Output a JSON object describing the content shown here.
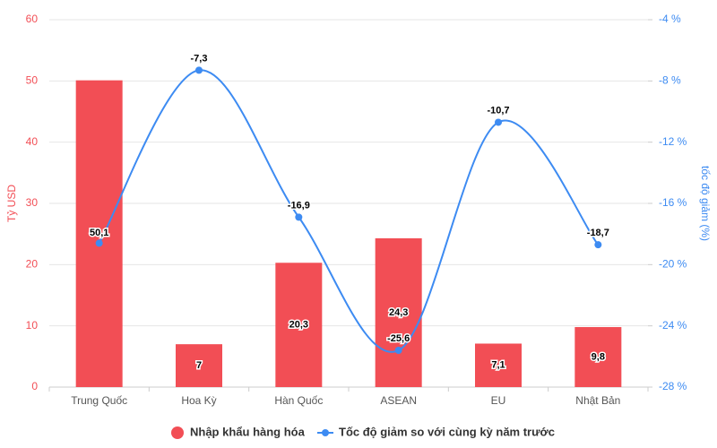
{
  "chart_data": {
    "type": "bar+line",
    "categories": [
      "Trung Quốc",
      "Hoa Kỳ",
      "Hàn Quốc",
      "ASEAN",
      "EU",
      "Nhật Bản"
    ],
    "series": [
      {
        "name": "Nhập khẩu hàng hóa",
        "type": "bar",
        "color": "#f24e55",
        "values": [
          50.1,
          7,
          20.3,
          24.3,
          7.1,
          9.8
        ],
        "value_labels": [
          "50,1",
          "7",
          "20,3",
          "24,3",
          "7,1",
          "9,8"
        ]
      },
      {
        "name": "Tốc độ giảm so với cùng kỳ năm trước",
        "type": "line",
        "axis": "y2",
        "color": "#3d8bf2",
        "values": [
          -18.6,
          -7.3,
          -16.9,
          -25.6,
          -10.7,
          -18.7
        ],
        "value_labels": [
          null,
          "-7,3",
          "-16,9",
          "-25,6",
          "-10,7",
          "-18,7"
        ]
      }
    ],
    "ylabel": "Tỷ USD",
    "y2label": "tốc độ giảm (%)",
    "ylim": [
      0,
      60
    ],
    "yticks": [
      0,
      10,
      20,
      30,
      40,
      50,
      60
    ],
    "y2lim": [
      -28,
      -4
    ],
    "y2ticks": [
      {
        "value": -28,
        "label": "-28 %"
      },
      {
        "value": -24,
        "label": "-24 %"
      },
      {
        "value": -20,
        "label": "-20 %"
      },
      {
        "value": -16,
        "label": "-16 %"
      },
      {
        "value": -12,
        "label": "-12 %"
      },
      {
        "value": -8,
        "label": "-8 %"
      },
      {
        "value": -4,
        "label": "-4 %"
      }
    ],
    "grid": true,
    "legend": "bottom"
  }
}
